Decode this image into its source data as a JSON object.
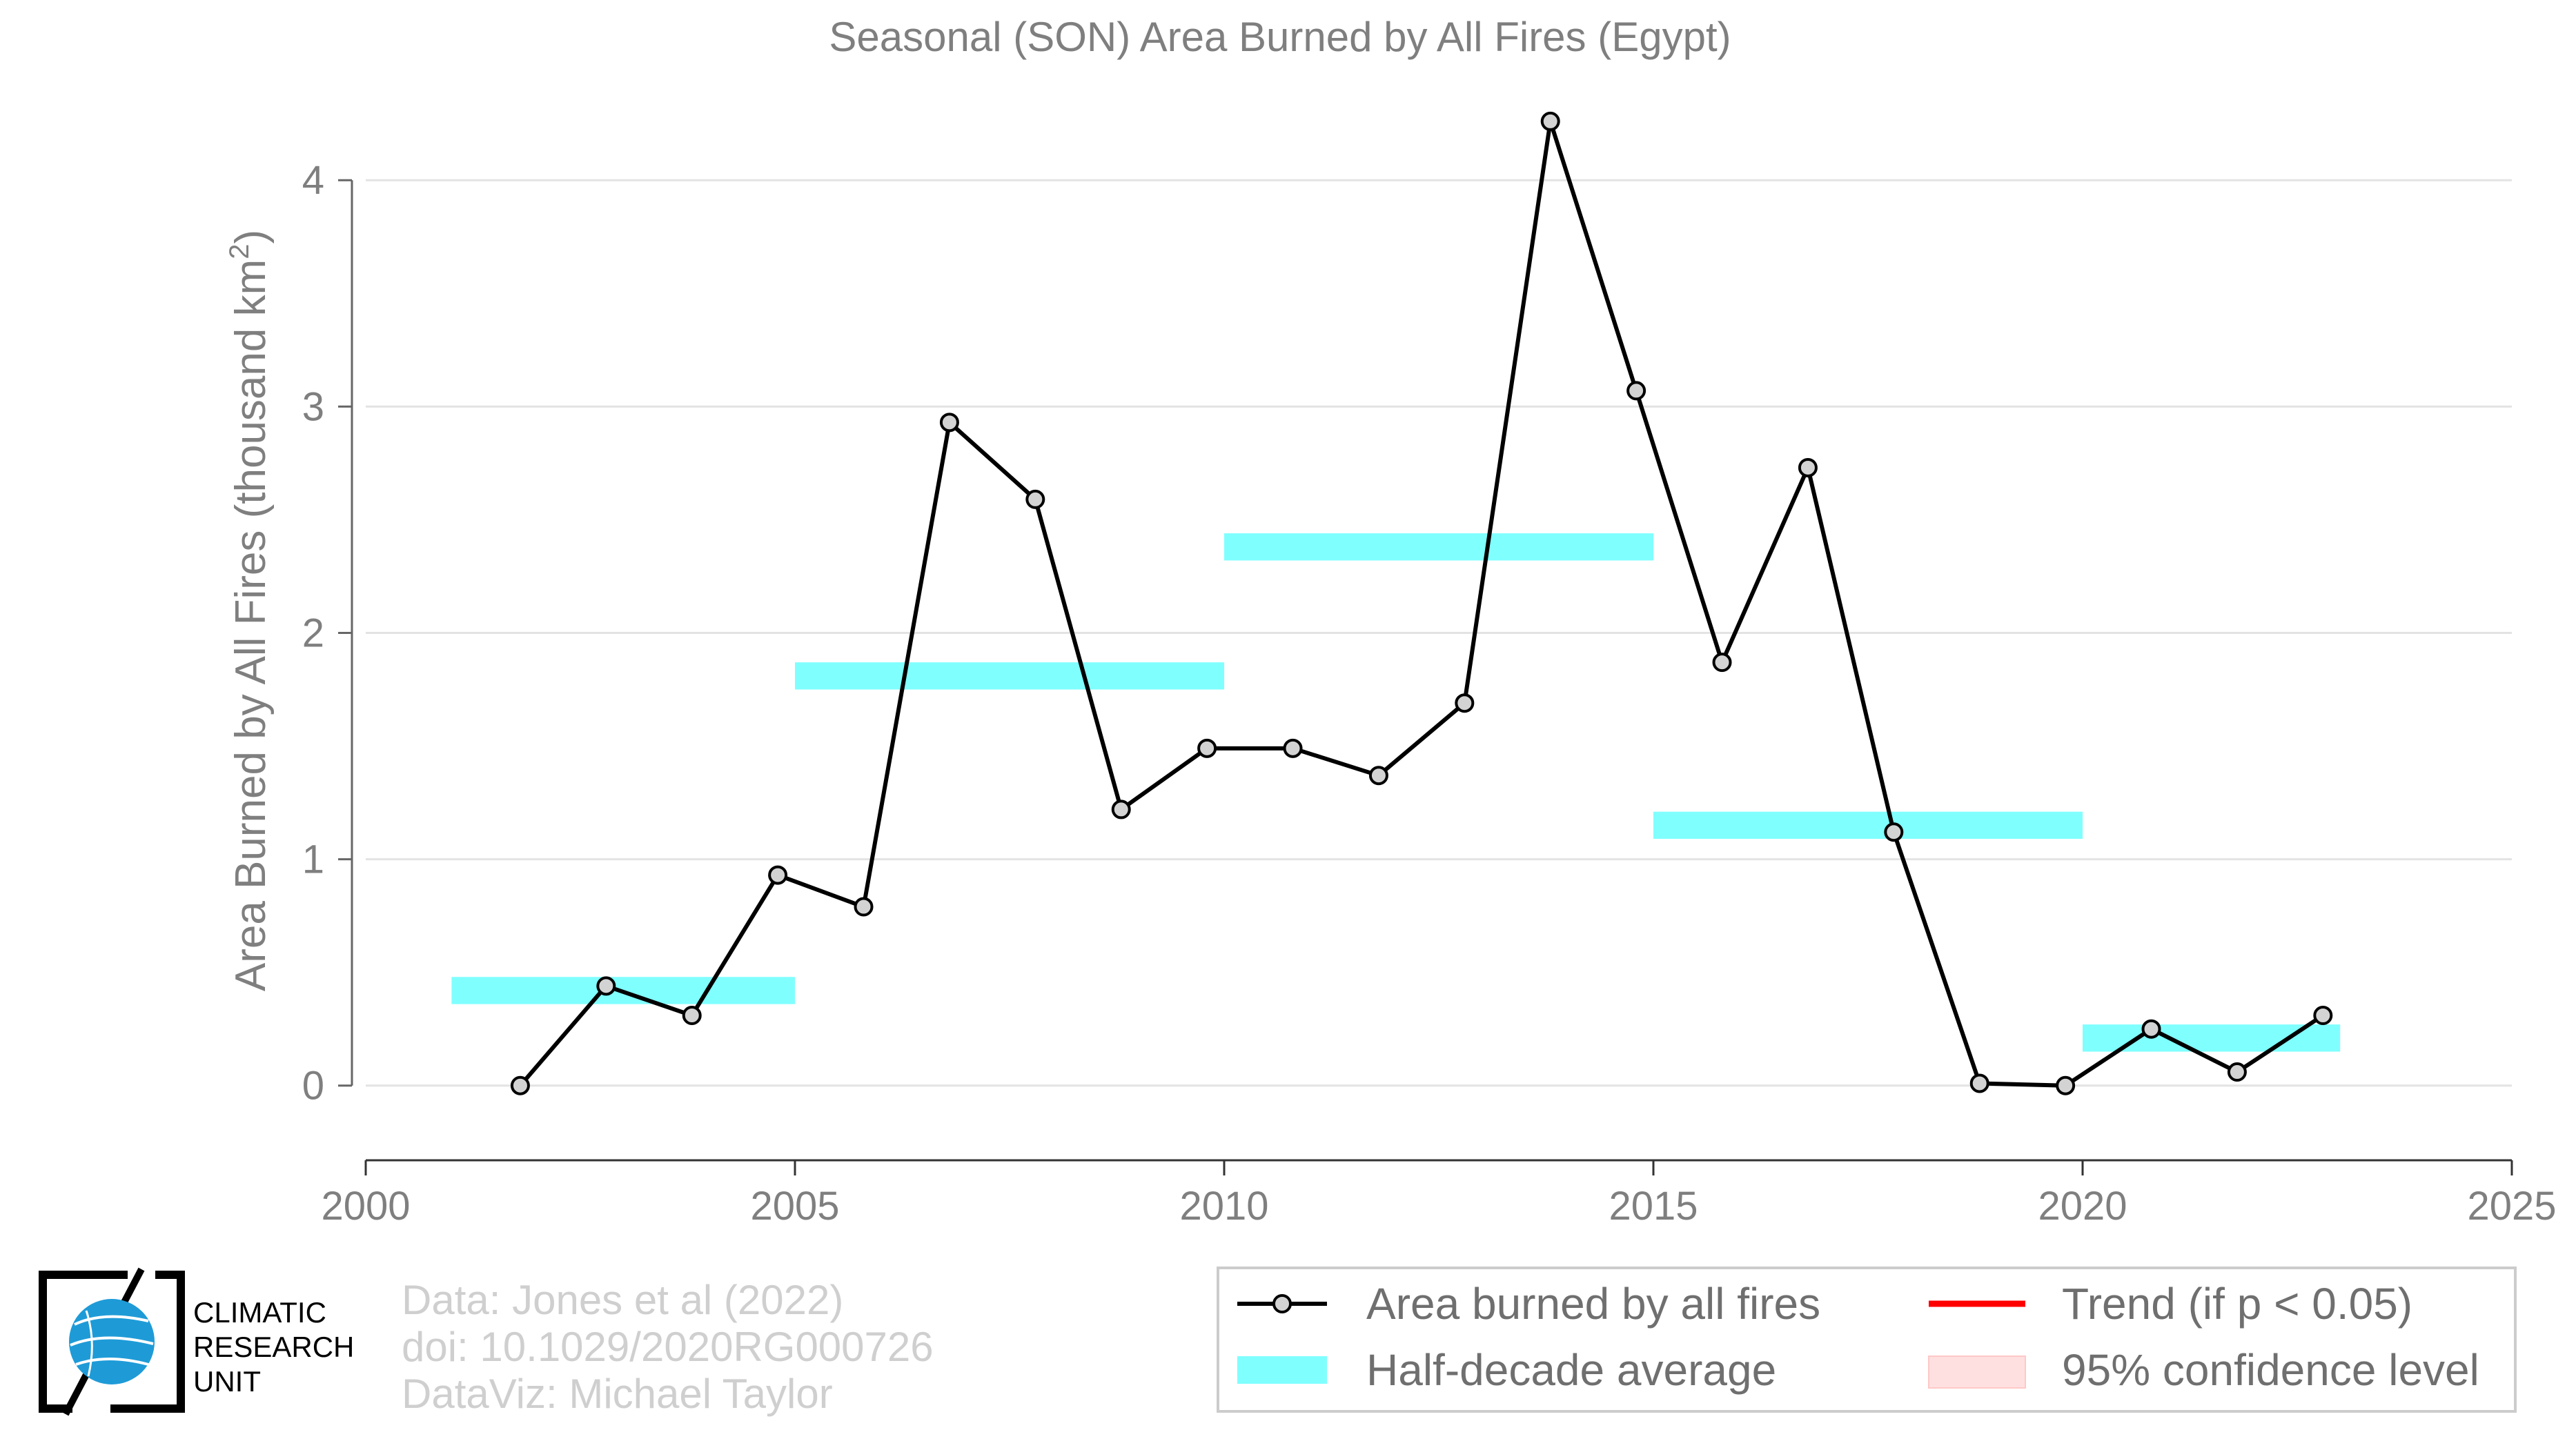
{
  "chart_data": {
    "type": "line",
    "title": "Seasonal (SON) Area Burned by All Fires (Egypt)",
    "xlabel": "",
    "ylabel": "Area Burned by All Fires (thousand km",
    "ylabel_sup": "2",
    "ylabel_close": ")",
    "xlim": [
      2000,
      2025
    ],
    "ylim": [
      -0.33,
      4.4
    ],
    "xticks": [
      2000,
      2005,
      2010,
      2015,
      2020,
      2025
    ],
    "yticks": [
      0,
      1,
      2,
      3,
      4
    ],
    "grid": "horizontal",
    "series": [
      {
        "name": "Area burned by all fires",
        "color": "#000000",
        "marker_fill": "#d3d3d3",
        "x": [
          2001.8,
          2002.8,
          2003.8,
          2004.8,
          2005.8,
          2006.8,
          2007.8,
          2008.8,
          2009.8,
          2010.8,
          2011.8,
          2012.8,
          2013.8,
          2014.8,
          2015.8,
          2016.8,
          2017.8,
          2018.8,
          2019.8,
          2020.8,
          2021.8,
          2022.8
        ],
        "values": [
          0.0,
          0.44,
          0.31,
          0.93,
          0.79,
          2.93,
          2.59,
          1.22,
          1.49,
          1.49,
          1.37,
          1.69,
          4.26,
          3.07,
          1.87,
          2.73,
          1.12,
          0.01,
          0.0,
          0.25,
          0.06,
          0.31
        ]
      }
    ],
    "half_decade_averages": {
      "name": "Half-decade average",
      "color": "#80ffff",
      "segments": [
        {
          "x0": 2001,
          "x1": 2005,
          "value": 0.42
        },
        {
          "x0": 2005,
          "x1": 2010,
          "value": 1.81
        },
        {
          "x0": 2010,
          "x1": 2015,
          "value": 2.38
        },
        {
          "x0": 2015,
          "x1": 2020,
          "value": 1.15
        },
        {
          "x0": 2020,
          "x1": 2023,
          "value": 0.21
        }
      ]
    },
    "legend": {
      "placement": "bottom-right",
      "entries": [
        {
          "key": "series",
          "label": "Area burned by all fires"
        },
        {
          "key": "trend",
          "label": "Trend (if p < 0.05)",
          "color": "#ff0000"
        },
        {
          "key": "half",
          "label": "Half-decade average",
          "color": "#80ffff"
        },
        {
          "key": "ci",
          "label": "95% confidence level",
          "color": "#ffe0e0"
        }
      ]
    }
  },
  "credits": {
    "line1": "Data: Jones et al (2022)",
    "line2": "doi: 10.1029/2020RG000726",
    "line3": "DataViz: Michael Taylor"
  },
  "logo": {
    "line1": "CLIMATIC",
    "line2": "RESEARCH",
    "line3": "UNIT",
    "icon": "globe-icon",
    "color": "#1e9bd7"
  }
}
